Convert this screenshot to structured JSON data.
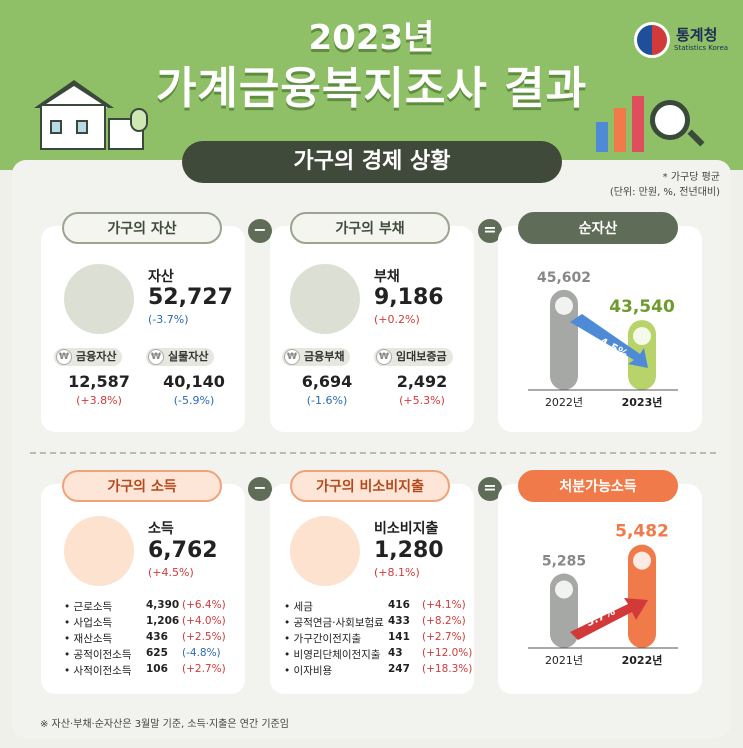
{
  "header": {
    "title_year": "2023년",
    "title_main": "가계금융복지조사 결과",
    "org_name": "통계청",
    "org_name_en": "Statistics Korea"
  },
  "section": {
    "title": "가구의 경제 상황",
    "note": "* 가구당 평균",
    "unit": "(단위: 만원, %, 전년대비)"
  },
  "assets": {
    "tag": "가구의 자산",
    "label": "자산",
    "value": "52,727",
    "change": "(-3.7%)",
    "sub": [
      {
        "label": "금융자산",
        "value": "12,587",
        "change": "(+3.8%)"
      },
      {
        "label": "실물자산",
        "value": "40,140",
        "change": "(-5.9%)"
      }
    ]
  },
  "debt": {
    "tag": "가구의 부채",
    "label": "부채",
    "value": "9,186",
    "change": "(+0.2%)",
    "sub": [
      {
        "label": "금융부채",
        "value": "6,694",
        "change": "(-1.6%)"
      },
      {
        "label": "임대보증금",
        "value": "2,492",
        "change": "(+5.3%)"
      }
    ]
  },
  "net_assets": {
    "tag": "순자산",
    "chart_data": {
      "type": "bar",
      "categories": [
        "2022년",
        "2023년"
      ],
      "values": [
        45602,
        43540
      ],
      "value_labels": [
        "45,602",
        "43,540"
      ],
      "change_label": "-4.5%"
    }
  },
  "income": {
    "tag": "가구의 소득",
    "label": "소득",
    "value": "6,762",
    "change": "(+4.5%)",
    "items": [
      {
        "label": "근로소득",
        "value": "4,390",
        "change": "(+6.4%)"
      },
      {
        "label": "사업소득",
        "value": "1,206",
        "change": "(+4.0%)"
      },
      {
        "label": "재산소득",
        "value": "436",
        "change": "(+2.5%)"
      },
      {
        "label": "공적이전소득",
        "value": "625",
        "change": "(-4.8%)"
      },
      {
        "label": "사적이전소득",
        "value": "106",
        "change": "(+2.7%)"
      }
    ]
  },
  "non_consumption": {
    "tag": "가구의 비소비지출",
    "label": "비소비지출",
    "value": "1,280",
    "change": "(+8.1%)",
    "items": [
      {
        "label": "세금",
        "value": "416",
        "change": "(+4.1%)"
      },
      {
        "label": "공적연금·사회보험료",
        "value": "433",
        "change": "(+8.2%)"
      },
      {
        "label": "가구간이전지출",
        "value": "141",
        "change": "(+2.7%)"
      },
      {
        "label": "비영리단체이전지출",
        "value": "43",
        "change": "(+12.0%)"
      },
      {
        "label": "이자비용",
        "value": "247",
        "change": "(+18.3%)"
      }
    ]
  },
  "disposable_income": {
    "tag": "처분가능소득",
    "chart_data": {
      "type": "bar",
      "categories": [
        "2021년",
        "2022년"
      ],
      "values": [
        5285,
        5482
      ],
      "value_labels": [
        "5,285",
        "5,482"
      ],
      "change_label": "3.7%"
    }
  },
  "operators": {
    "minus": "−",
    "equals": "="
  },
  "footer": "※ 자산·부채·순자산은 3월말 기준, 소득·지출은 연간 기준임",
  "colors": {
    "green": "#8fbf66",
    "dark": "#3f4a3a",
    "orange": "#f07a4a",
    "gray": "#a5a8a4",
    "lime": "#b7d36a"
  }
}
